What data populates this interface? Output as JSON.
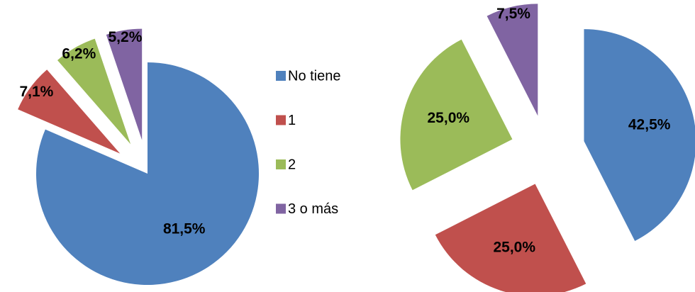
{
  "chart_data": [
    {
      "type": "pie",
      "categories": [
        "No tiene",
        "1",
        "2",
        "3 o más"
      ],
      "values": [
        81.5,
        7.1,
        6.2,
        5.2
      ],
      "value_labels": [
        "81,5%",
        "7,1%",
        "6,2%",
        "5,2%"
      ],
      "colors": [
        "#4f81bd",
        "#c0504d",
        "#9bbb59",
        "#8064a2"
      ]
    },
    {
      "type": "pie",
      "values": [
        42.5,
        25.0,
        25.0,
        7.5
      ],
      "value_labels": [
        "42,5%",
        "25,0%",
        "25,0%",
        "7,5%"
      ],
      "colors": [
        "#4f81bd",
        "#c0504d",
        "#9bbb59",
        "#8064a2"
      ]
    }
  ]
}
